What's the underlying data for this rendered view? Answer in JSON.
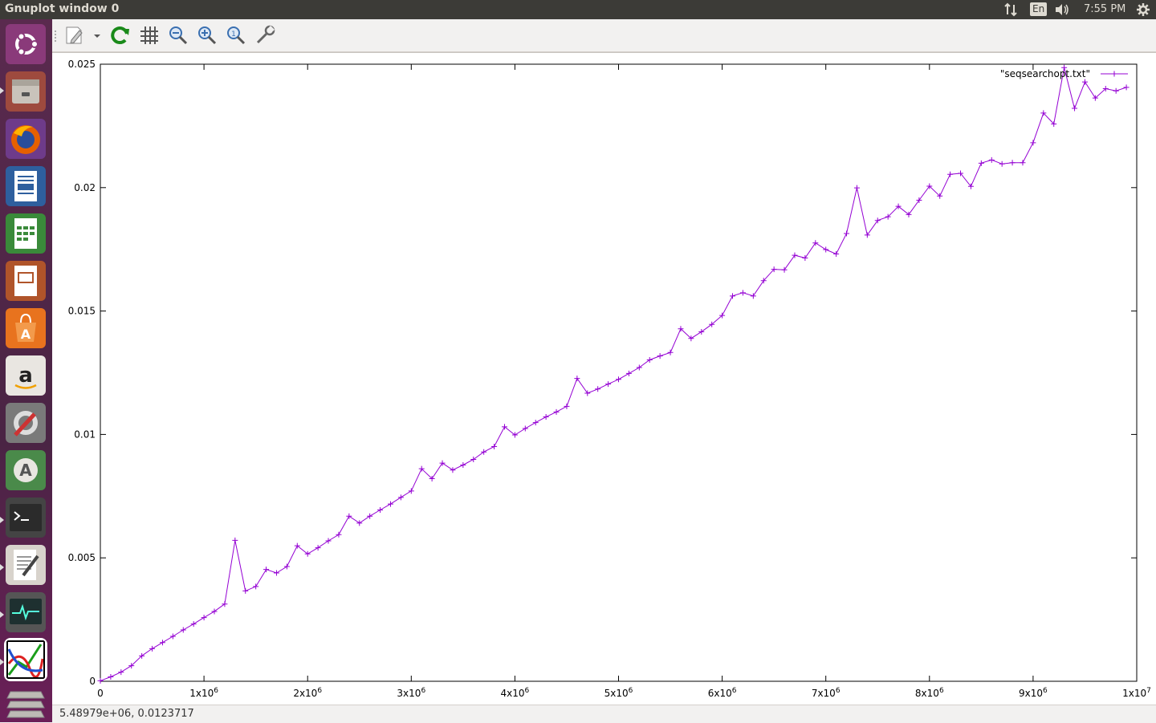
{
  "window": {
    "title": "Gnuplot window 0"
  },
  "indicators": {
    "keyboard": "En",
    "clock": "7:55 PM"
  },
  "statusbar": {
    "coords": "5.48979e+06,  0.0123717"
  },
  "colors": {
    "series": "#9400d3",
    "launcher_bg": "#4a2444",
    "topbar_bg": "#3c3b37"
  },
  "launcher": {
    "items": [
      {
        "icon": "ubuntu-dash-icon"
      },
      {
        "icon": "files-icon"
      },
      {
        "icon": "firefox-icon"
      },
      {
        "icon": "libreoffice-writer-icon"
      },
      {
        "icon": "libreoffice-calc-icon"
      },
      {
        "icon": "libreoffice-impress-icon"
      },
      {
        "icon": "software-center-icon"
      },
      {
        "icon": "amazon-icon"
      },
      {
        "icon": "system-settings-icon"
      },
      {
        "icon": "software-updater-icon"
      },
      {
        "icon": "terminal-icon"
      },
      {
        "icon": "text-editor-icon"
      },
      {
        "icon": "system-monitor-icon"
      },
      {
        "icon": "gnuplot-icon"
      },
      {
        "icon": "workspaces-icon"
      }
    ]
  },
  "toolbar": {
    "buttons": [
      {
        "icon": "export-icon"
      },
      {
        "icon": "replot-icon"
      },
      {
        "icon": "grid-icon"
      },
      {
        "icon": "zoom-previous-icon"
      },
      {
        "icon": "zoom-next-icon"
      },
      {
        "icon": "autoscale-icon"
      },
      {
        "icon": "options-icon"
      }
    ]
  },
  "chart_data": {
    "type": "line",
    "title": "",
    "xlabel": "",
    "ylabel": "",
    "xlim": [
      0,
      10000000
    ],
    "ylim": [
      0,
      0.025
    ],
    "grid": false,
    "legend_position": "top-right",
    "x_ticks": [
      {
        "mant": "0",
        "exp": ""
      },
      {
        "mant": "1x10",
        "exp": "6"
      },
      {
        "mant": "2x10",
        "exp": "6"
      },
      {
        "mant": "3x10",
        "exp": "6"
      },
      {
        "mant": "4x10",
        "exp": "6"
      },
      {
        "mant": "5x10",
        "exp": "6"
      },
      {
        "mant": "6x10",
        "exp": "6"
      },
      {
        "mant": "7x10",
        "exp": "6"
      },
      {
        "mant": "8x10",
        "exp": "6"
      },
      {
        "mant": "9x10",
        "exp": "6"
      },
      {
        "mant": "1x10",
        "exp": "7"
      }
    ],
    "y_ticks": [
      "0",
      "0.005",
      "0.01",
      "0.015",
      "0.02",
      "0.025"
    ],
    "series": [
      {
        "name": "\"seqsearchopt.txt\"",
        "color": "#9400d3",
        "x": [
          0,
          100000,
          200000,
          300000,
          400000,
          500000,
          600000,
          700000,
          800000,
          900000,
          1000000,
          1100000,
          1200000,
          1300000,
          1400000,
          1500000,
          1600000,
          1700000,
          1800000,
          1900000,
          2000000,
          2100000,
          2200000,
          2300000,
          2400000,
          2500000,
          2600000,
          2700000,
          2800000,
          2900000,
          3000000,
          3100000,
          3200000,
          3300000,
          3400000,
          3500000,
          3600000,
          3700000,
          3800000,
          3900000,
          4000000,
          4100000,
          4200000,
          4300000,
          4400000,
          4500000,
          4600000,
          4700000,
          4800000,
          4900000,
          5000000,
          5100000,
          5200000,
          5300000,
          5400000,
          5500000,
          5600000,
          5700000,
          5800000,
          5900000,
          6000000,
          6100000,
          6200000,
          6300000,
          6400000,
          6500000,
          6600000,
          6700000,
          6800000,
          6900000,
          7000000,
          7100000,
          7200000,
          7300000,
          7400000,
          7500000,
          7600000,
          7700000,
          7800000,
          7900000,
          8000000,
          8100000,
          8200000,
          8300000,
          8400000,
          8500000,
          8600000,
          8700000,
          8800000,
          8900000,
          9000000,
          9100000,
          9200000,
          9300000,
          9400000,
          9500000,
          9600000,
          9700000,
          9800000,
          9900000
        ],
        "y": [
          2e-05,
          0.00018,
          0.00037,
          0.00063,
          0.00103,
          0.00132,
          0.00157,
          0.00182,
          0.00208,
          0.00232,
          0.00258,
          0.00283,
          0.00313,
          0.00571,
          0.00366,
          0.00384,
          0.00453,
          0.00439,
          0.00465,
          0.00549,
          0.00516,
          0.00541,
          0.00569,
          0.00594,
          0.00669,
          0.00641,
          0.00669,
          0.00694,
          0.00718,
          0.00745,
          0.00771,
          0.00861,
          0.00821,
          0.00884,
          0.00856,
          0.00876,
          0.00899,
          0.00929,
          0.00951,
          0.01031,
          0.00998,
          0.01024,
          0.01048,
          0.01071,
          0.01091,
          0.01114,
          0.01227,
          0.01167,
          0.01184,
          0.01204,
          0.01223,
          0.01247,
          0.01271,
          0.01302,
          0.01318,
          0.01332,
          0.01428,
          0.01389,
          0.01416,
          0.01446,
          0.01482,
          0.01561,
          0.01574,
          0.01561,
          0.01623,
          0.01669,
          0.01667,
          0.01726,
          0.01715,
          0.01776,
          0.01749,
          0.01731,
          0.01814,
          0.01999,
          0.01808,
          0.01867,
          0.01882,
          0.01924,
          0.01891,
          0.01949,
          0.02006,
          0.01966,
          0.02054,
          0.02058,
          0.02005,
          0.02099,
          0.02112,
          0.02096,
          0.02101,
          0.02101,
          0.02182,
          0.02302,
          0.02258,
          0.02486,
          0.02321,
          0.02428,
          0.02363,
          0.02401,
          0.02392,
          0.02406
        ]
      }
    ]
  }
}
